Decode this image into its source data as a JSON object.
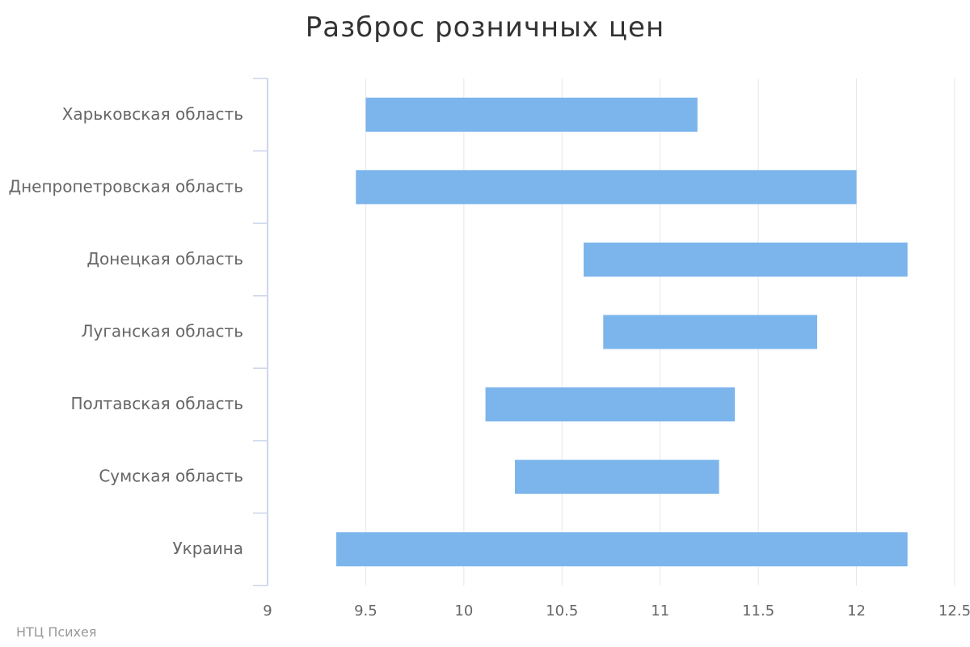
{
  "chart_data": {
    "type": "bar",
    "orientation": "horizontal",
    "title": "Разброс розничных цен",
    "credit": "НТЦ Психея",
    "categories": [
      "Харьковская область",
      "Днепропетровская область",
      "Донецкая область",
      "Луганская область",
      "Полтавская область",
      "Сумская область",
      "Украина"
    ],
    "ranges": [
      [
        9.5,
        11.19
      ],
      [
        9.45,
        12.0
      ],
      [
        10.61,
        12.26
      ],
      [
        10.71,
        11.8
      ],
      [
        10.11,
        11.38
      ],
      [
        10.26,
        11.3
      ],
      [
        9.35,
        12.26
      ]
    ],
    "xlim": [
      9,
      12.5
    ],
    "xticks": [
      "9",
      "9.5",
      "10",
      "10.5",
      "11",
      "11.5",
      "12",
      "12.5"
    ],
    "grid": true,
    "legend": "none",
    "bar_color": "#7cb5ec",
    "grid_color": "#e6e6e6",
    "axis_color": "#ccd6eb"
  }
}
